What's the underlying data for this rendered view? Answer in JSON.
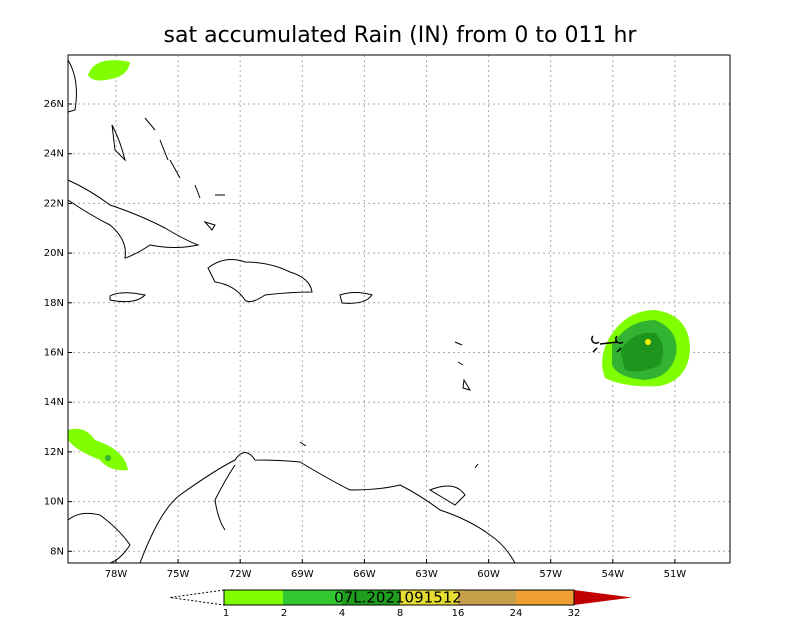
{
  "map": {
    "title": "sat accumulated Rain (IN) from 0 to 011 hr",
    "lat_labels": [
      "26N",
      "24N",
      "22N",
      "20N",
      "18N",
      "16N",
      "14N",
      "12N",
      "10N",
      "8N"
    ],
    "lon_labels": [
      "78W",
      "75W",
      "72W",
      "69W",
      "66W",
      "63W",
      "60W",
      "57W",
      "54W",
      "51W"
    ],
    "colorbar_labels": [
      "1",
      "2",
      "4",
      "8",
      "16",
      "24",
      "32"
    ],
    "storm_label": "07L.2021091512"
  }
}
